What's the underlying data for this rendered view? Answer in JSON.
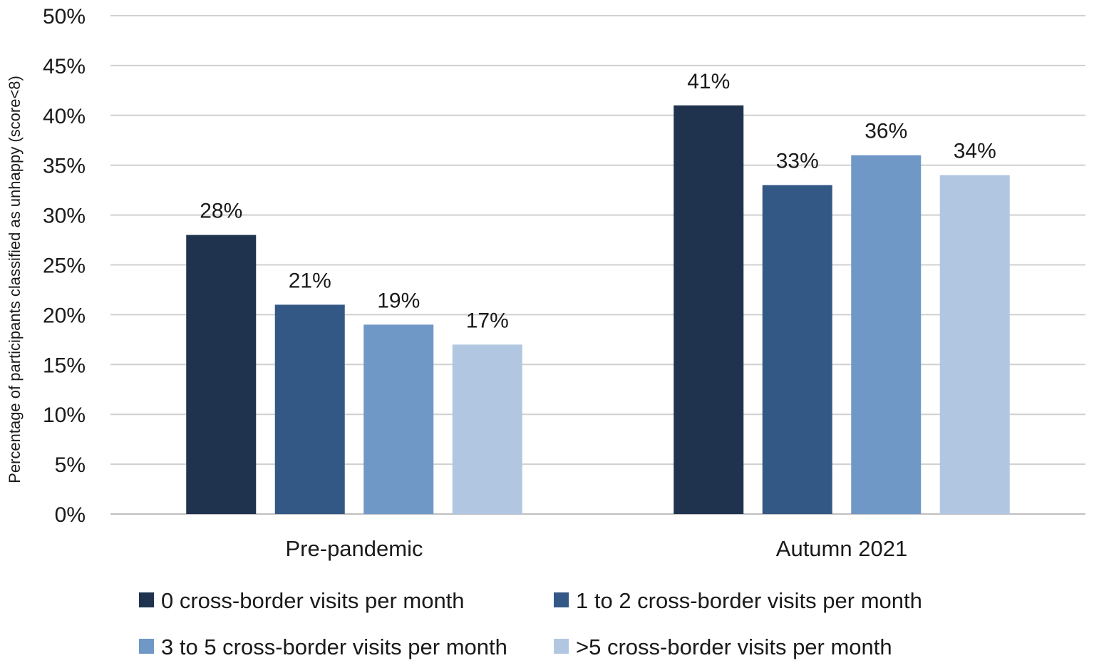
{
  "chart_data": {
    "type": "bar",
    "title": "",
    "xlabel": "",
    "ylabel": "Percentage of participants classified as unhappy (score<8)",
    "categories": [
      "Pre-pandemic",
      "Autumn 2021"
    ],
    "ylim": [
      0,
      50
    ],
    "yticks": [
      0,
      5,
      10,
      15,
      20,
      25,
      30,
      35,
      40,
      45,
      50
    ],
    "value_suffix": "%",
    "grid": true,
    "legend_position": "bottom",
    "series": [
      {
        "name": "0 cross-border visits per month",
        "color": "#1f334e",
        "values": [
          28,
          41
        ]
      },
      {
        "name": "1 to 2 cross-border visits per month",
        "color": "#345886",
        "values": [
          21,
          33
        ]
      },
      {
        "name": "3 to 5 cross-border visits per month",
        "color": "#6f98c6",
        "values": [
          19,
          36
        ]
      },
      {
        "name": ">5 cross-border visits per month",
        "color": "#b1c7e1",
        "values": [
          17,
          34
        ]
      }
    ]
  }
}
